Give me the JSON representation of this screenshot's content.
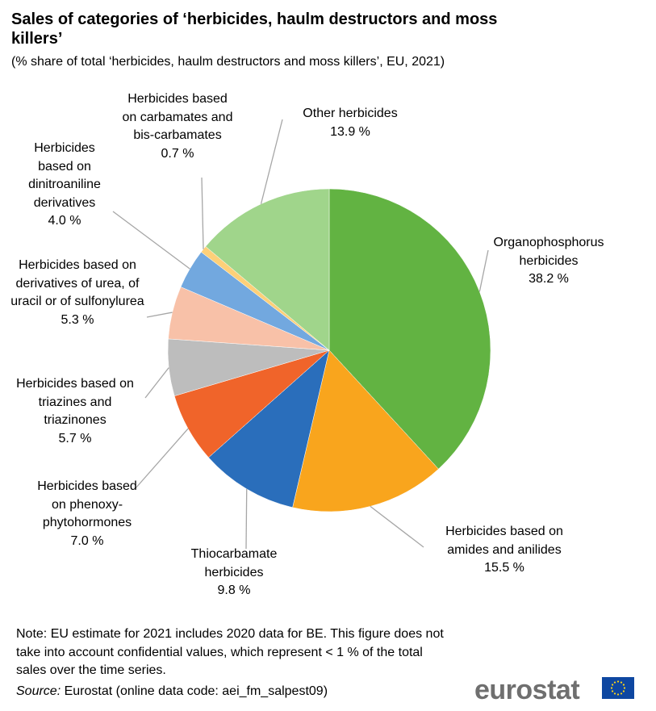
{
  "chart_data": {
    "type": "pie",
    "title": "Sales of categories of ‘herbicides, haulm destructors and moss killers’",
    "subtitle": "(% share of total ‘herbicides, haulm destructors and moss killers’, EU, 2021)",
    "categories": [
      "Organophosphorus herbicides",
      "Herbicides based on amides and anilides",
      "Thiocarbamate herbicides",
      "Herbicides based on phenoxy-phytohormones",
      "Herbicides based on triazines and triazinones",
      "Herbicides based on derivatives of urea, of uracil or of sulfonylurea",
      "Herbicides based on dinitroaniline derivatives",
      "Herbicides based on carbamates and bis-carbamates",
      "Other herbicides"
    ],
    "values": [
      38.2,
      15.5,
      9.8,
      7.0,
      5.7,
      5.3,
      4.0,
      0.7,
      13.9
    ],
    "value_labels": [
      "38.2 %",
      "15.5 %",
      "9.8 %",
      "7.0 %",
      "5.7 %",
      "5.3 %",
      "4.0 %",
      "0.7 %",
      "13.9 %"
    ],
    "colors": [
      "#62b342",
      "#f9a51d",
      "#2a6ebb",
      "#f0642a",
      "#bdbdbd",
      "#f8c1a8",
      "#72a8df",
      "#fdd079",
      "#a0d58b"
    ],
    "note": "Note: EU estimate for 2021 includes 2020 data for BE. This figure does not take into account confidential values, which represent < 1 % of the total sales over the time series.",
    "source_label": "Source:",
    "source": "Eurostat (online data code: aei_fm_salpest09)",
    "logo": "eurostat"
  }
}
